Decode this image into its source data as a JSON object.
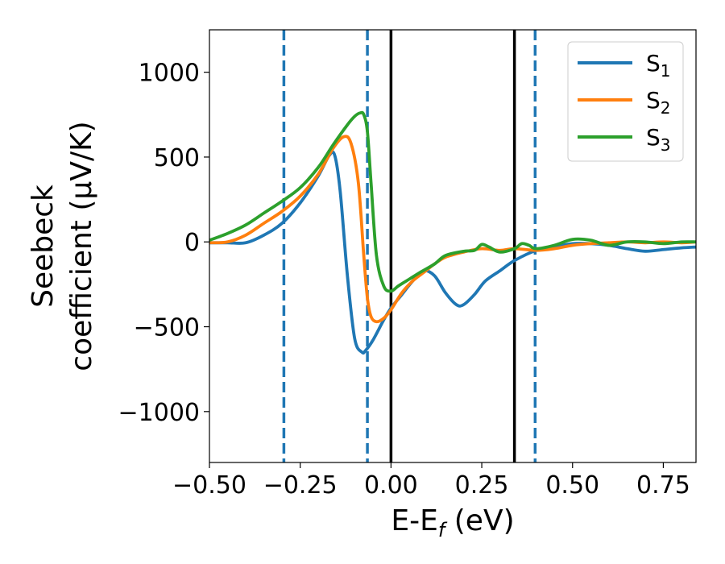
{
  "chart_data": {
    "type": "line",
    "xlabel": "E-E",
    "xlabel_sub": "f",
    "xlabel_unit": " (eV)",
    "ylabel_line1": "Seebeck",
    "ylabel_line2": "coefficient  (μV/K)",
    "xlim": [
      -0.5,
      0.84
    ],
    "ylim": [
      -1300,
      1250
    ],
    "xticks": [
      -0.5,
      -0.25,
      0.0,
      0.25,
      0.5,
      0.75
    ],
    "xtick_labels": [
      "−0.50",
      "−0.25",
      "0.00",
      "0.25",
      "0.50",
      "0.75"
    ],
    "yticks": [
      1000,
      500,
      0,
      -500,
      -1000
    ],
    "ytick_labels": [
      "1000",
      "500",
      "0",
      "−500",
      "−1000"
    ],
    "grid": false,
    "legend_position": "top-right",
    "vlines": [
      {
        "x": -0.295,
        "style": "dashed",
        "color": "#1f77b4"
      },
      {
        "x": -0.065,
        "style": "dashed",
        "color": "#1f77b4"
      },
      {
        "x": 0.0,
        "style": "solid",
        "color": "#000000"
      },
      {
        "x": 0.34,
        "style": "solid",
        "color": "#000000"
      },
      {
        "x": 0.397,
        "style": "dashed",
        "color": "#1f77b4"
      }
    ],
    "series": [
      {
        "name": "S",
        "sub": "1",
        "color": "#1f77b4",
        "x": [
          -0.5,
          -0.45,
          -0.4,
          -0.35,
          -0.3,
          -0.25,
          -0.2,
          -0.17,
          -0.155,
          -0.14,
          -0.12,
          -0.1,
          -0.08,
          -0.07,
          -0.05,
          -0.02,
          0.0,
          0.03,
          0.06,
          0.09,
          0.12,
          0.15,
          0.18,
          0.2,
          0.23,
          0.26,
          0.3,
          0.34,
          0.4,
          0.45,
          0.5,
          0.55,
          0.6,
          0.65,
          0.7,
          0.75,
          0.8,
          0.84
        ],
        "y": [
          -5,
          -5,
          -5,
          40,
          110,
          230,
          390,
          510,
          510,
          300,
          -200,
          -570,
          -650,
          -640,
          -580,
          -460,
          -390,
          -310,
          -230,
          -170,
          -200,
          -300,
          -370,
          -370,
          -310,
          -230,
          -170,
          -110,
          -50,
          -30,
          -10,
          -10,
          -20,
          -40,
          -55,
          -45,
          -35,
          -30
        ]
      },
      {
        "name": "S",
        "sub": "2",
        "color": "#ff7f0e",
        "x": [
          -0.5,
          -0.45,
          -0.4,
          -0.35,
          -0.3,
          -0.25,
          -0.2,
          -0.16,
          -0.13,
          -0.11,
          -0.09,
          -0.075,
          -0.065,
          -0.055,
          -0.04,
          -0.02,
          0.0,
          0.03,
          0.06,
          0.09,
          0.12,
          0.15,
          0.2,
          0.25,
          0.3,
          0.34,
          0.4,
          0.45,
          0.5,
          0.55,
          0.6,
          0.65,
          0.7,
          0.75,
          0.8,
          0.84
        ],
        "y": [
          -5,
          0,
          40,
          110,
          180,
          270,
          400,
          550,
          620,
          580,
          350,
          -80,
          -330,
          -440,
          -470,
          -450,
          -400,
          -300,
          -230,
          -180,
          -130,
          -90,
          -60,
          -40,
          -50,
          -40,
          -50,
          -40,
          -20,
          -10,
          -5,
          0,
          -5,
          0,
          -5,
          0
        ]
      },
      {
        "name": "S",
        "sub": "3",
        "color": "#2ca02c",
        "x": [
          -0.5,
          -0.45,
          -0.4,
          -0.35,
          -0.3,
          -0.25,
          -0.2,
          -0.16,
          -0.12,
          -0.1,
          -0.085,
          -0.075,
          -0.065,
          -0.055,
          -0.04,
          -0.02,
          0.0,
          0.02,
          0.05,
          0.08,
          0.12,
          0.15,
          0.2,
          0.23,
          0.25,
          0.27,
          0.3,
          0.34,
          0.36,
          0.38,
          0.4,
          0.45,
          0.5,
          0.55,
          0.6,
          0.65,
          0.7,
          0.75,
          0.8,
          0.84
        ],
        "y": [
          10,
          50,
          100,
          170,
          240,
          320,
          440,
          570,
          690,
          740,
          760,
          750,
          650,
          350,
          -80,
          -260,
          -290,
          -260,
          -220,
          -180,
          -130,
          -80,
          -55,
          -50,
          -15,
          -30,
          -60,
          -40,
          -10,
          -20,
          -40,
          -20,
          15,
          10,
          -20,
          0,
          0,
          -10,
          0,
          0
        ]
      }
    ]
  }
}
